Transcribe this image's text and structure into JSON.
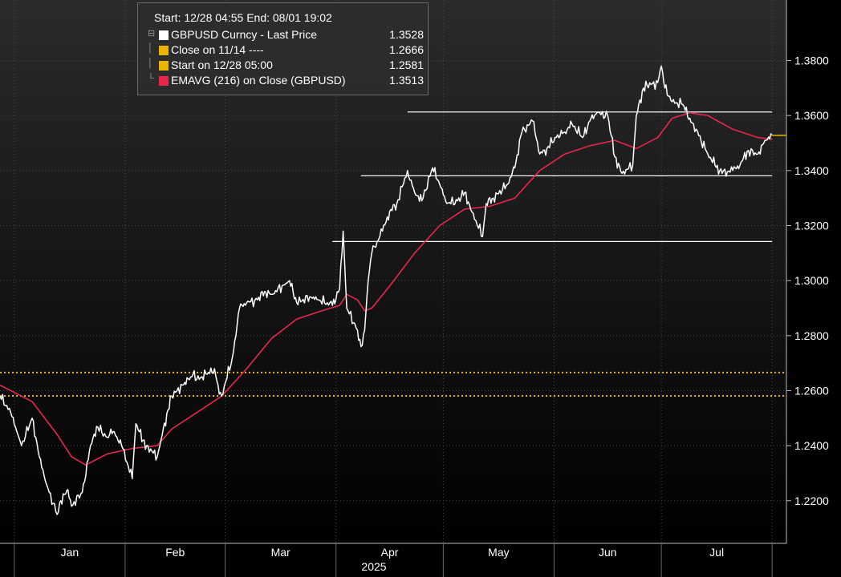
{
  "legend": {
    "header": "Start: 12/28 04:55 End: 08/01 19:02",
    "items": [
      {
        "label": "GBPUSD Curncy - Last Price",
        "value": "1.3528",
        "color": "#ffffff"
      },
      {
        "label": "Close on 11/14 ----",
        "value": "1.2666",
        "color": "#e8b400"
      },
      {
        "label": "Start on 12/28 05:00",
        "value": "1.2581",
        "color": "#e8b400"
      },
      {
        "label": "EMAVG (216)  on Close (GBPUSD)",
        "value": "1.3513",
        "color": "#e8274b"
      }
    ]
  },
  "chart_data": {
    "type": "line",
    "x_axis": {
      "months": [
        "Jan",
        "Feb",
        "Mar",
        "Apr",
        "May",
        "Jun",
        "Jul"
      ],
      "year": "2025"
    },
    "y_axis": {
      "ticks": [
        "1.2200",
        "1.2400",
        "1.2600",
        "1.2800",
        "1.3000",
        "1.3200",
        "1.3400",
        "1.3600",
        "1.3800"
      ],
      "range": [
        1.2045,
        1.402
      ],
      "position": "right"
    },
    "grid": true,
    "series": [
      {
        "name": "GBPUSD Curncy - Last Price",
        "color": "#ffffff",
        "points": [
          [
            "2024-12-28",
            1.2581
          ],
          [
            "2024-12-31",
            1.252
          ],
          [
            "2025-01-02",
            1.244
          ],
          [
            "2025-01-03",
            1.24
          ],
          [
            "2025-01-06",
            1.25
          ],
          [
            "2025-01-08",
            1.236
          ],
          [
            "2025-01-10",
            1.226
          ],
          [
            "2025-01-13",
            1.215
          ],
          [
            "2025-01-14",
            1.22
          ],
          [
            "2025-01-16",
            1.224
          ],
          [
            "2025-01-17",
            1.218
          ],
          [
            "2025-01-20",
            1.223
          ],
          [
            "2025-01-21",
            1.229
          ],
          [
            "2025-01-22",
            1.238
          ],
          [
            "2025-01-24",
            1.247
          ],
          [
            "2025-01-27",
            1.243
          ],
          [
            "2025-01-28",
            1.246
          ],
          [
            "2025-01-29",
            1.245
          ],
          [
            "2025-01-30",
            1.242
          ],
          [
            "2025-01-31",
            1.24
          ],
          [
            "2025-02-03",
            1.228
          ],
          [
            "2025-02-04",
            1.248
          ],
          [
            "2025-02-06",
            1.242
          ],
          [
            "2025-02-07",
            1.24
          ],
          [
            "2025-02-10",
            1.236
          ],
          [
            "2025-02-11",
            1.242
          ],
          [
            "2025-02-13",
            1.253
          ],
          [
            "2025-02-14",
            1.258
          ],
          [
            "2025-02-17",
            1.262
          ],
          [
            "2025-02-19",
            1.264
          ],
          [
            "2025-02-20",
            1.266
          ],
          [
            "2025-02-21",
            1.264
          ],
          [
            "2025-02-24",
            1.266
          ],
          [
            "2025-02-26",
            1.268
          ],
          [
            "2025-02-27",
            1.262
          ],
          [
            "2025-02-28",
            1.258
          ],
          [
            "2025-03-03",
            1.272
          ],
          [
            "2025-03-04",
            1.28
          ],
          [
            "2025-03-05",
            1.29
          ],
          [
            "2025-03-07",
            1.292
          ],
          [
            "2025-03-10",
            1.293
          ],
          [
            "2025-03-12",
            1.296
          ],
          [
            "2025-03-14",
            1.295
          ],
          [
            "2025-03-18",
            1.299
          ],
          [
            "2025-03-19",
            1.3
          ],
          [
            "2025-03-21",
            1.292
          ],
          [
            "2025-03-25",
            1.294
          ],
          [
            "2025-03-27",
            1.293
          ],
          [
            "2025-03-31",
            1.291
          ],
          [
            "2025-04-02",
            1.297
          ],
          [
            "2025-04-03",
            1.318
          ],
          [
            "2025-04-04",
            1.29
          ],
          [
            "2025-04-07",
            1.282
          ],
          [
            "2025-04-08",
            1.276
          ],
          [
            "2025-04-09",
            1.282
          ],
          [
            "2025-04-10",
            1.3
          ],
          [
            "2025-04-11",
            1.31
          ],
          [
            "2025-04-14",
            1.318
          ],
          [
            "2025-04-16",
            1.325
          ],
          [
            "2025-04-18",
            1.328
          ],
          [
            "2025-04-21",
            1.34
          ],
          [
            "2025-04-23",
            1.332
          ],
          [
            "2025-04-25",
            1.329
          ],
          [
            "2025-04-28",
            1.341
          ],
          [
            "2025-04-30",
            1.335
          ],
          [
            "2025-05-02",
            1.328
          ],
          [
            "2025-05-05",
            1.329
          ],
          [
            "2025-05-07",
            1.332
          ],
          [
            "2025-05-09",
            1.325
          ],
          [
            "2025-05-12",
            1.316
          ],
          [
            "2025-05-13",
            1.328
          ],
          [
            "2025-05-15",
            1.33
          ],
          [
            "2025-05-19",
            1.335
          ],
          [
            "2025-05-21",
            1.341
          ],
          [
            "2025-05-23",
            1.354
          ],
          [
            "2025-05-26",
            1.358
          ],
          [
            "2025-05-28",
            1.346
          ],
          [
            "2025-05-30",
            1.348
          ],
          [
            "2025-06-02",
            1.353
          ],
          [
            "2025-06-04",
            1.354
          ],
          [
            "2025-06-06",
            1.357
          ],
          [
            "2025-06-09",
            1.352
          ],
          [
            "2025-06-11",
            1.358
          ],
          [
            "2025-06-13",
            1.361
          ],
          [
            "2025-06-16",
            1.36
          ],
          [
            "2025-06-18",
            1.345
          ],
          [
            "2025-06-20",
            1.339
          ],
          [
            "2025-06-23",
            1.342
          ],
          [
            "2025-06-24",
            1.36
          ],
          [
            "2025-06-26",
            1.37
          ],
          [
            "2025-06-27",
            1.371
          ],
          [
            "2025-06-30",
            1.372
          ],
          [
            "2025-07-01",
            1.378
          ],
          [
            "2025-07-02",
            1.37
          ],
          [
            "2025-07-04",
            1.365
          ],
          [
            "2025-07-07",
            1.364
          ],
          [
            "2025-07-09",
            1.359
          ],
          [
            "2025-07-10",
            1.357
          ],
          [
            "2025-07-14",
            1.346
          ],
          [
            "2025-07-16",
            1.342
          ],
          [
            "2025-07-18",
            1.339
          ],
          [
            "2025-07-21",
            1.34
          ],
          [
            "2025-07-23",
            1.342
          ],
          [
            "2025-07-25",
            1.347
          ],
          [
            "2025-07-28",
            1.346
          ],
          [
            "2025-07-30",
            1.351
          ],
          [
            "2025-08-01",
            1.3528
          ]
        ]
      },
      {
        "name": "EMAVG (216)  on Close (GBPUSD)",
        "color": "#e8274b",
        "points": [
          [
            "2024-12-28",
            1.262
          ],
          [
            "2025-01-06",
            1.256
          ],
          [
            "2025-01-13",
            1.244
          ],
          [
            "2025-01-17",
            1.236
          ],
          [
            "2025-01-21",
            1.233
          ],
          [
            "2025-01-27",
            1.237
          ],
          [
            "2025-02-03",
            1.239
          ],
          [
            "2025-02-10",
            1.24
          ],
          [
            "2025-02-14",
            1.246
          ],
          [
            "2025-02-21",
            1.252
          ],
          [
            "2025-02-28",
            1.258
          ],
          [
            "2025-03-07",
            1.268
          ],
          [
            "2025-03-14",
            1.279
          ],
          [
            "2025-03-21",
            1.286
          ],
          [
            "2025-03-28",
            1.289
          ],
          [
            "2025-04-02",
            1.291
          ],
          [
            "2025-04-04",
            1.295
          ],
          [
            "2025-04-07",
            1.293
          ],
          [
            "2025-04-09",
            1.289
          ],
          [
            "2025-04-11",
            1.29
          ],
          [
            "2025-04-16",
            1.298
          ],
          [
            "2025-04-23",
            1.31
          ],
          [
            "2025-04-30",
            1.32
          ],
          [
            "2025-05-07",
            1.326
          ],
          [
            "2025-05-14",
            1.327
          ],
          [
            "2025-05-21",
            1.33
          ],
          [
            "2025-05-28",
            1.34
          ],
          [
            "2025-06-04",
            1.346
          ],
          [
            "2025-06-11",
            1.349
          ],
          [
            "2025-06-18",
            1.351
          ],
          [
            "2025-06-24",
            1.348
          ],
          [
            "2025-06-30",
            1.352
          ],
          [
            "2025-07-04",
            1.359
          ],
          [
            "2025-07-09",
            1.361
          ],
          [
            "2025-07-14",
            1.36
          ],
          [
            "2025-07-21",
            1.355
          ],
          [
            "2025-07-28",
            1.352
          ],
          [
            "2025-08-01",
            1.3513
          ]
        ]
      }
    ],
    "reference_lines": [
      {
        "label": "Close on 11/14",
        "value": 1.2666,
        "color": "#e8b400",
        "style": "dotted"
      },
      {
        "label": "Start on 12/28 05:00",
        "value": 1.2581,
        "color": "#e8b400",
        "style": "dotted"
      }
    ],
    "level_lines": [
      {
        "value": 1.3613,
        "from": "2025-04-21",
        "to": "2025-08-01",
        "color": "#ffffff"
      },
      {
        "value": 1.3381,
        "from": "2025-04-08",
        "to": "2025-08-01",
        "color": "#ffffff"
      },
      {
        "value": 1.3142,
        "from": "2025-03-31",
        "to": "2025-08-01",
        "color": "#ffffff"
      }
    ],
    "last_value_marker": {
      "value": 1.3528,
      "color": "#e8b400"
    }
  }
}
